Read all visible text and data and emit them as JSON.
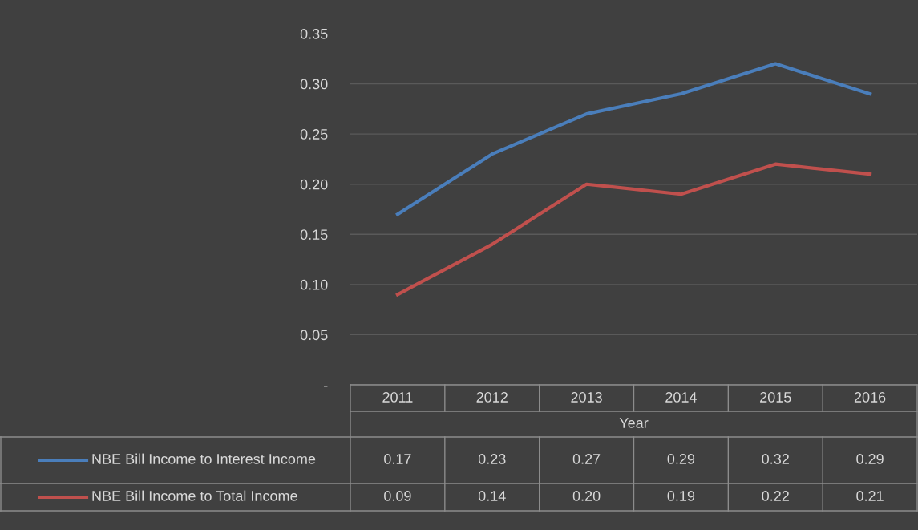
{
  "chart_data": {
    "type": "line",
    "xlabel": "Year",
    "categories": [
      "2011",
      "2012",
      "2013",
      "2014",
      "2015",
      "2016"
    ],
    "series": [
      {
        "name": "NBE Bill Income to Interest Income",
        "color": "#4a7ebb",
        "values": [
          0.17,
          0.23,
          0.27,
          0.29,
          0.32,
          0.29
        ],
        "value_labels": [
          "0.17",
          "0.23",
          "0.27",
          "0.29",
          "0.32",
          "0.29"
        ]
      },
      {
        "name": "NBE Bill Income to Total Income",
        "color": "#c0504d",
        "values": [
          0.09,
          0.14,
          0.2,
          0.19,
          0.22,
          0.21
        ],
        "value_labels": [
          "0.09",
          "0.14",
          "0.20",
          "0.19",
          "0.22",
          "0.21"
        ]
      }
    ],
    "ylim": [
      0,
      0.35
    ],
    "yticks": [
      {
        "value": 0,
        "label": "-"
      },
      0.05,
      {
        "value": 0.1,
        "label": "0.10"
      },
      0.15,
      {
        "value": 0.2,
        "label": "0.20"
      },
      0.25,
      {
        "value": 0.3,
        "label": "0.30"
      },
      0.35
    ],
    "grid": "y",
    "legend": "bottom",
    "marker": "none",
    "line_style": "solid"
  }
}
